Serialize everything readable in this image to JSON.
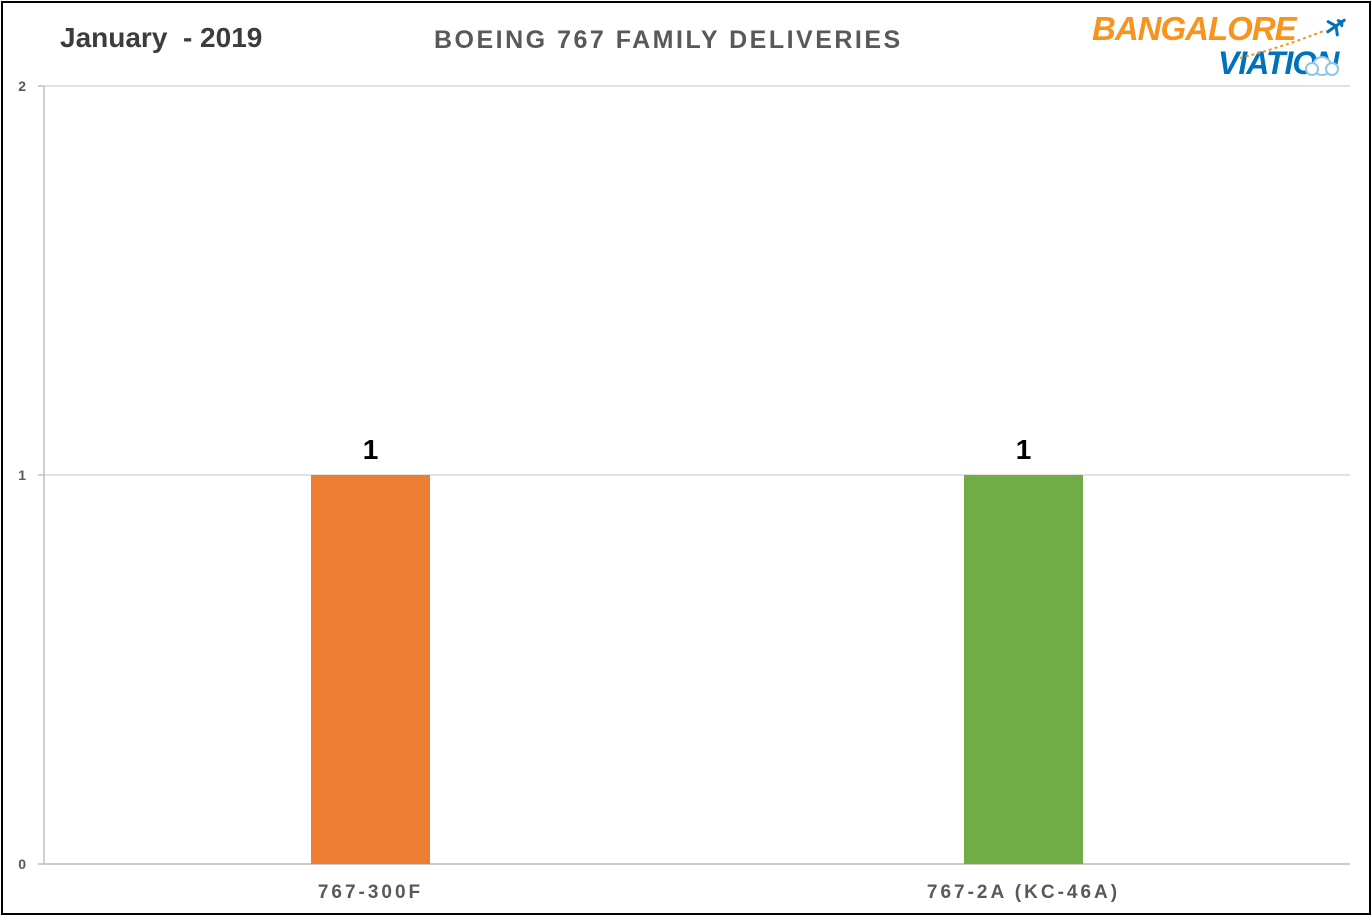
{
  "header": {
    "date_label": "January  - 2019"
  },
  "logo": {
    "line1": "BANGALORE",
    "line2": "VIATION",
    "orange": "#f7941d",
    "blue": "#0072bc"
  },
  "chart_data": {
    "type": "bar",
    "title": "BOEING 767 FAMILY DELIVERIES",
    "xlabel": "",
    "ylabel": "",
    "categories": [
      "767-300F",
      "767-2A (KC-46A)"
    ],
    "values": [
      1,
      1
    ],
    "bar_colors": [
      "#ed7d31",
      "#70ad47"
    ],
    "data_labels": [
      "1",
      "1"
    ],
    "ylim": [
      0,
      2
    ],
    "yticks": [
      0,
      1,
      2
    ],
    "ytick_labels": [
      "0",
      "1",
      "2"
    ],
    "grid": true,
    "legend": "none"
  }
}
